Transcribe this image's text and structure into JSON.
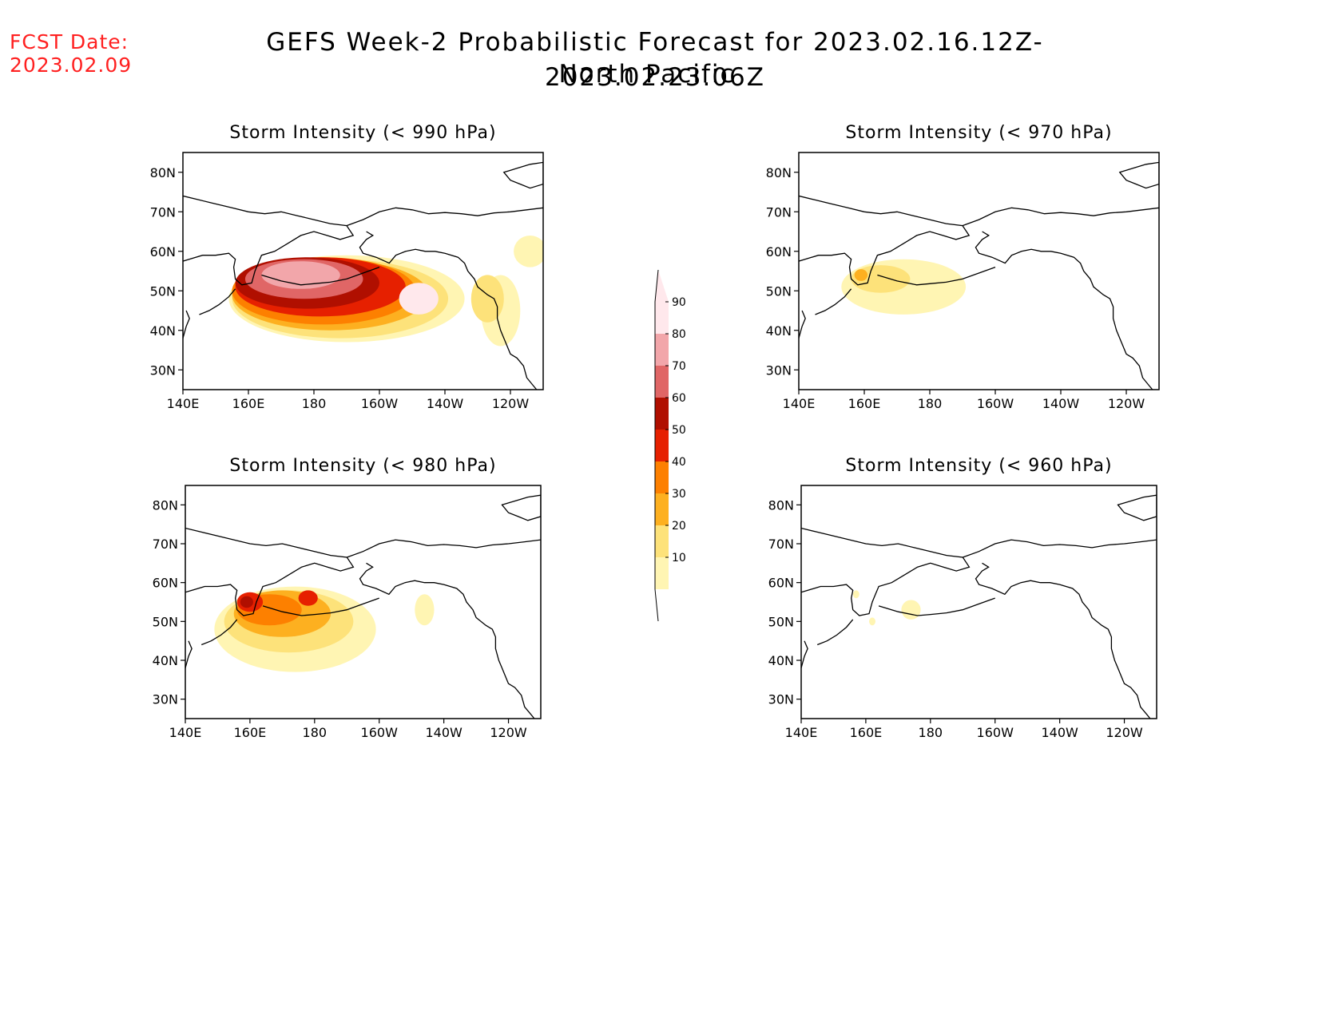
{
  "header": {
    "fcst_label": "FCST Date:",
    "fcst_date": "2023.02.09",
    "title": "GEFS Week-2 Probabilistic Forecast for 2023.02.16.12Z-2023.02.23.06Z",
    "subtitle": "North Pacific"
  },
  "colors": {
    "c10": "#fff5b3",
    "c20": "#fde27a",
    "c30": "#fdb020",
    "c40": "#fd8000",
    "c50": "#e62000",
    "c60": "#b00f00",
    "c70": "#e06666",
    "c80": "#f2a6aa",
    "c90": "#ffe8ec",
    "coast": "#000000"
  },
  "colorbar": {
    "labels": [
      "90",
      "80",
      "70",
      "60",
      "50",
      "40",
      "30",
      "20",
      "10"
    ]
  },
  "chart_data": [
    {
      "type": "heatmap",
      "title": "Storm Intensity (< 990 hPa)",
      "x_ticks": [
        "140E",
        "160E",
        "180",
        "160W",
        "140W",
        "120W"
      ],
      "y_ticks": [
        "80N",
        "70N",
        "60N",
        "50N",
        "40N",
        "30N"
      ],
      "xlim": [
        140,
        250
      ],
      "ylim": [
        25,
        85
      ],
      "units": "percent",
      "regions": [
        {
          "level": 10,
          "lon": 190,
          "lat": 48,
          "rx": 36,
          "ry": 11
        },
        {
          "level": 10,
          "lon": 237,
          "lat": 45,
          "rx": 6,
          "ry": 9
        },
        {
          "level": 10,
          "lon": 246,
          "lat": 60,
          "rx": 5,
          "ry": 4
        },
        {
          "level": 20,
          "lon": 188,
          "lat": 48,
          "rx": 33,
          "ry": 10
        },
        {
          "level": 20,
          "lon": 233,
          "lat": 48,
          "rx": 5,
          "ry": 6
        },
        {
          "level": 30,
          "lon": 185,
          "lat": 49,
          "rx": 30,
          "ry": 9
        },
        {
          "level": 40,
          "lon": 183,
          "lat": 50,
          "rx": 28,
          "ry": 8.5
        },
        {
          "level": 50,
          "lon": 182,
          "lat": 51,
          "rx": 26,
          "ry": 7.5
        },
        {
          "level": 60,
          "lon": 178,
          "lat": 52,
          "rx": 22,
          "ry": 6.5
        },
        {
          "level": 70,
          "lon": 177,
          "lat": 53,
          "rx": 18,
          "ry": 5
        },
        {
          "level": 80,
          "lon": 176,
          "lat": 54,
          "rx": 12,
          "ry": 3.5
        },
        {
          "level": 90,
          "lon": 212,
          "lat": 48,
          "rx": 6,
          "ry": 4
        }
      ]
    },
    {
      "type": "heatmap",
      "title": "Storm Intensity (< 970 hPa)",
      "x_ticks": [
        "140E",
        "160E",
        "180",
        "160W",
        "140W",
        "120W"
      ],
      "y_ticks": [
        "80N",
        "70N",
        "60N",
        "50N",
        "40N",
        "30N"
      ],
      "xlim": [
        140,
        250
      ],
      "ylim": [
        25,
        85
      ],
      "units": "percent",
      "regions": [
        {
          "level": 10,
          "lon": 172,
          "lat": 51,
          "rx": 19,
          "ry": 7
        },
        {
          "level": 20,
          "lon": 165,
          "lat": 53,
          "rx": 9,
          "ry": 3.5
        },
        {
          "level": 30,
          "lon": 159,
          "lat": 54,
          "rx": 2,
          "ry": 1.5
        }
      ]
    },
    {
      "type": "heatmap",
      "title": "Storm Intensity (< 980 hPa)",
      "x_ticks": [
        "140E",
        "160E",
        "180",
        "160W",
        "140W",
        "120W"
      ],
      "y_ticks": [
        "80N",
        "70N",
        "60N",
        "50N",
        "40N",
        "30N"
      ],
      "xlim": [
        140,
        250
      ],
      "ylim": [
        25,
        85
      ],
      "units": "percent",
      "regions": [
        {
          "level": 10,
          "lon": 174,
          "lat": 48,
          "rx": 25,
          "ry": 11
        },
        {
          "level": 10,
          "lon": 214,
          "lat": 53,
          "rx": 3,
          "ry": 4
        },
        {
          "level": 20,
          "lon": 172,
          "lat": 50,
          "rx": 20,
          "ry": 8
        },
        {
          "level": 30,
          "lon": 170,
          "lat": 52,
          "rx": 15,
          "ry": 6
        },
        {
          "level": 40,
          "lon": 166,
          "lat": 53,
          "rx": 10,
          "ry": 4
        },
        {
          "level": 50,
          "lon": 160,
          "lat": 55,
          "rx": 4,
          "ry": 2.5
        },
        {
          "level": 50,
          "lon": 178,
          "lat": 56,
          "rx": 3,
          "ry": 2
        },
        {
          "level": 60,
          "lon": 159,
          "lat": 55,
          "rx": 2,
          "ry": 1.5
        }
      ]
    },
    {
      "type": "heatmap",
      "title": "Storm Intensity (< 960 hPa)",
      "x_ticks": [
        "140E",
        "160E",
        "180",
        "160W",
        "140W",
        "120W"
      ],
      "y_ticks": [
        "80N",
        "70N",
        "60N",
        "50N",
        "40N",
        "30N"
      ],
      "xlim": [
        140,
        250
      ],
      "ylim": [
        25,
        85
      ],
      "units": "percent",
      "regions": [
        {
          "level": 10,
          "lon": 174,
          "lat": 53,
          "rx": 3,
          "ry": 2.5
        },
        {
          "level": 10,
          "lon": 157,
          "lat": 57,
          "rx": 1,
          "ry": 1
        },
        {
          "level": 10,
          "lon": 162,
          "lat": 50,
          "rx": 1,
          "ry": 1
        }
      ]
    }
  ]
}
